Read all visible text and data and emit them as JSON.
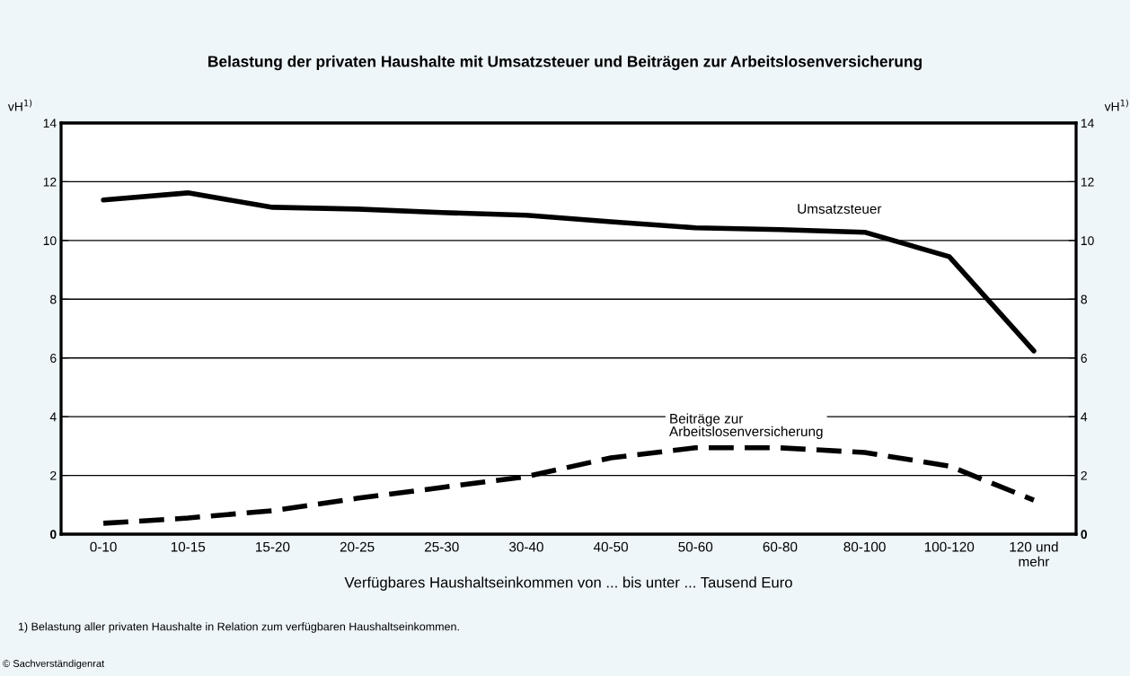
{
  "chart_data": {
    "type": "line",
    "title": "Belastung der privaten Haushalte mit Umsatzsteuer und Beiträgen zur Arbeitslosenversicherung",
    "xlabel": "Verfügbares Haushaltseinkommen von ... bis unter ... Tausend Euro",
    "ylabel": "vH$^{1)}$",
    "y2label": "vH$^{1)}$",
    "categories": [
      "0-10",
      "10-15",
      "15-20",
      "20-25",
      "25-30",
      "30-40",
      "40-50",
      "50-60",
      "60-80",
      "80-100",
      "100-120",
      "120 und\nmehr"
    ],
    "series": [
      {
        "name": "Umsatzsteuer",
        "color": "#000000",
        "line_style": "solid",
        "values": [
          11.38,
          11.62,
          11.13,
          11.07,
          10.95,
          10.86,
          10.64,
          10.43,
          10.37,
          10.28,
          9.45,
          6.24
        ]
      },
      {
        "name": "Beiträge zur\nArbeitslosenversicherung",
        "color": "#000000",
        "line_style": "dashed",
        "values": [
          0.37,
          0.55,
          0.8,
          1.22,
          1.59,
          1.96,
          2.6,
          2.94,
          2.94,
          2.78,
          2.32,
          1.16
        ]
      }
    ],
    "ylim": [
      0,
      14
    ],
    "yticks": [
      {
        "value": 0,
        "label": "0"
      },
      2,
      4,
      6,
      8,
      10,
      12,
      14
    ],
    "y2lim": [
      0,
      14
    ],
    "y2ticks": [
      {
        "value": 0,
        "label": "0"
      },
      2,
      4,
      6,
      8,
      10,
      12,
      14
    ],
    "grid": "y",
    "legend": false,
    "annotations": [
      "1) Belastung aller privaten Haushalte in Relation zum verfügbaren Haushaltseinkommen.",
      "© Sachverständigenrat"
    ]
  }
}
